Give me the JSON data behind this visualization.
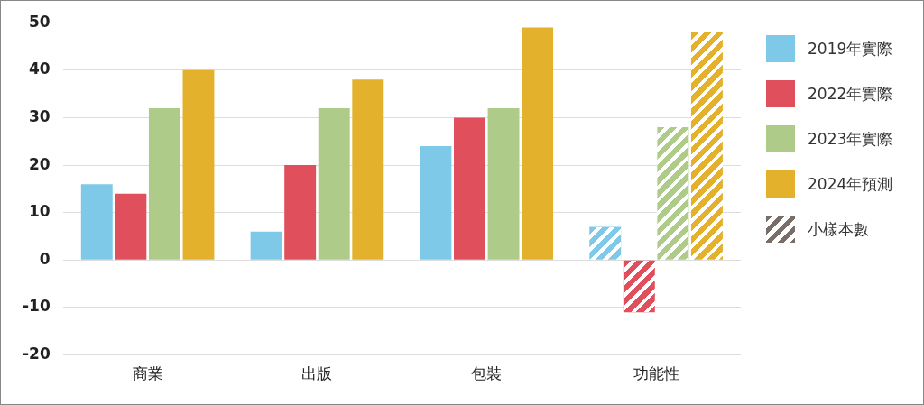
{
  "chart_data": {
    "type": "bar",
    "categories": [
      "商業",
      "出版",
      "包裝",
      "功能性"
    ],
    "series": [
      {
        "name": "2019年實際",
        "color": "#7ec8e8",
        "values": [
          16,
          6,
          24,
          7
        ]
      },
      {
        "name": "2022年實際",
        "color": "#df4f5c",
        "values": [
          14,
          20,
          30,
          -11
        ]
      },
      {
        "name": "2023年實際",
        "color": "#aecb8a",
        "values": [
          32,
          32,
          32,
          28
        ]
      },
      {
        "name": "2024年預測",
        "color": "#e3b12b",
        "values": [
          40,
          38,
          49,
          48
        ]
      }
    ],
    "annotations": [
      "小樣本數"
    ],
    "ylim": [
      -20,
      50
    ],
    "yticks": [
      -20,
      -10,
      0,
      10,
      20,
      30,
      40,
      50
    ],
    "grid": "y",
    "legend": "right"
  }
}
